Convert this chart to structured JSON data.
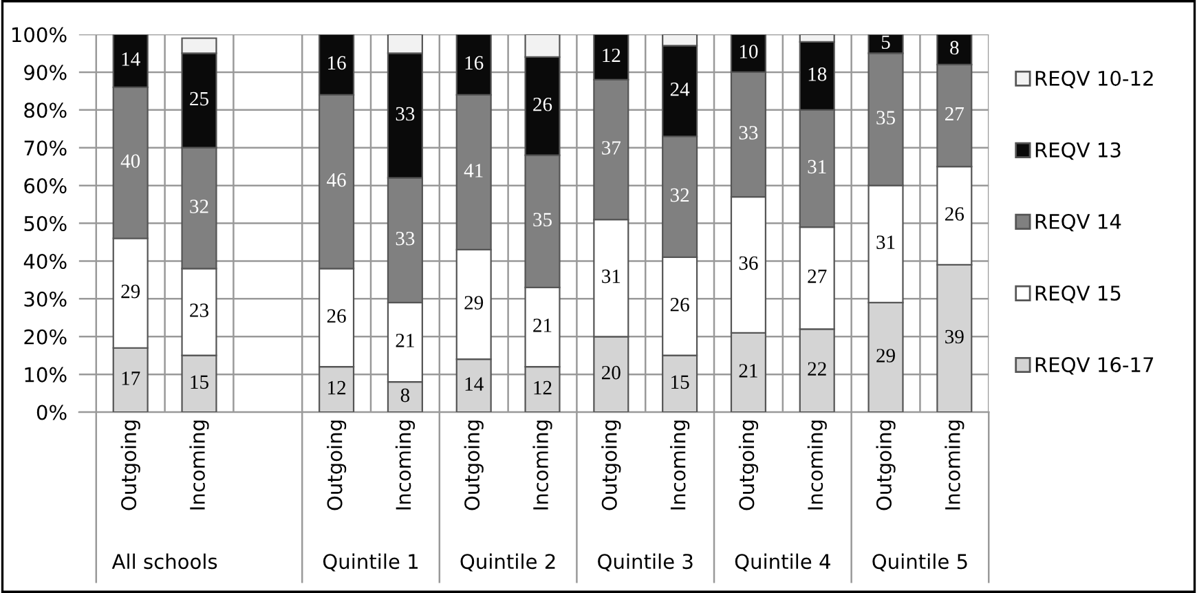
{
  "chart_data": {
    "type": "bar",
    "stacked": true,
    "legend": "right",
    "grid": true,
    "categories": [
      "Outgoing",
      "Incoming",
      null,
      "Outgoing",
      "Incoming",
      "Outgoing",
      "Incoming",
      "Outgoing",
      "Incoming",
      "Outgoing",
      "Incoming",
      "Outgoing",
      "Incoming"
    ],
    "annotations": [
      "All schools",
      "Quintile 1",
      "Quintile 2",
      "Quintile 3",
      "Quintile 4",
      "Quintile 5"
    ],
    "ylim": [
      0,
      100
    ],
    "yticks": [
      {
        "value": 0,
        "label": "0%"
      },
      {
        "value": 10,
        "label": "10%"
      },
      {
        "value": 20,
        "label": "20%"
      },
      {
        "value": 30,
        "label": "30%"
      },
      {
        "value": 40,
        "label": "40%"
      },
      {
        "value": 50,
        "label": "50%"
      },
      {
        "value": 60,
        "label": "60%"
      },
      {
        "value": 70,
        "label": "70%"
      },
      {
        "value": 80,
        "label": "80%"
      },
      {
        "value": 90,
        "label": "90%"
      },
      {
        "value": 100,
        "label": "100%"
      }
    ],
    "series": [
      {
        "name": "REQV 16-17",
        "color": "#d4d4d4",
        "values": [
          17,
          15,
          null,
          12,
          8,
          14,
          12,
          20,
          15,
          21,
          22,
          29,
          39
        ],
        "value_labels": [
          "17",
          "15",
          null,
          "12",
          "8",
          "14",
          "12",
          "20",
          "15",
          "21",
          "22",
          "29",
          "39"
        ]
      },
      {
        "name": "REQV 15",
        "color": "#ffffff",
        "values": [
          29,
          23,
          null,
          26,
          21,
          29,
          21,
          31,
          26,
          36,
          27,
          31,
          26
        ],
        "value_labels": [
          "29",
          "23",
          null,
          "26",
          "21",
          "29",
          "21",
          "31",
          "26",
          "36",
          "27",
          "31",
          "26"
        ]
      },
      {
        "name": "REQV 14",
        "color": "#808080",
        "values": [
          40,
          32,
          null,
          46,
          33,
          41,
          35,
          37,
          32,
          33,
          31,
          35,
          27
        ],
        "value_labels": [
          "40",
          "32",
          null,
          "46",
          "33",
          "41",
          "35",
          "37",
          "32",
          "33",
          "31",
          "35",
          "27"
        ]
      },
      {
        "name": "REQV 13",
        "color": "#0a0a0a",
        "values": [
          14,
          25,
          null,
          16,
          33,
          16,
          26,
          12,
          24,
          10,
          18,
          5,
          8
        ],
        "value_labels": [
          "14",
          "25",
          null,
          "16",
          "33",
          "16",
          "26",
          "12",
          "24",
          "10",
          "18",
          "5",
          "8"
        ]
      },
      {
        "name": "REQV 10-12",
        "color": "#f2f2f2",
        "values": [
          null,
          4,
          null,
          null,
          5,
          null,
          6,
          null,
          3,
          null,
          2,
          null,
          null
        ]
      }
    ]
  }
}
